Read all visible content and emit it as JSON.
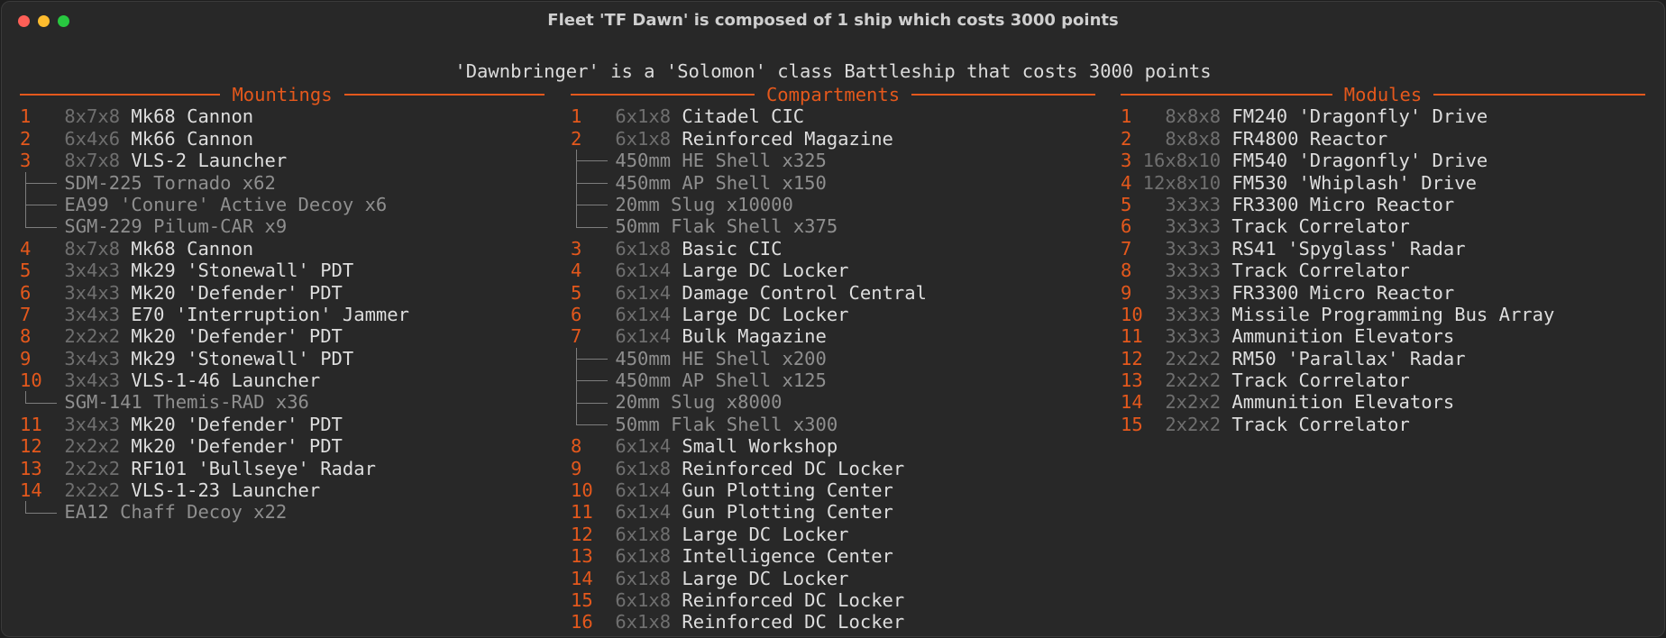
{
  "window": {
    "title": "Fleet 'TF Dawn' is composed of 1 ship which costs 3000 points"
  },
  "ship": "'Dawnbringer' is a 'Solomon' class Battleship that costs 3000 points",
  "columns": [
    {
      "title": "Mountings",
      "items": [
        {
          "index": 1,
          "size": "8x7x8",
          "name": "Mk68 Cannon"
        },
        {
          "index": 2,
          "size": "6x4x6",
          "name": "Mk66 Cannon"
        },
        {
          "index": 3,
          "size": "8x7x8",
          "name": "VLS-2 Launcher",
          "children": [
            "SDM-225 Tornado x62",
            "EA99 'Conure' Active Decoy x6",
            "SGM-229 Pilum-CAR x9"
          ]
        },
        {
          "index": 4,
          "size": "8x7x8",
          "name": "Mk68 Cannon"
        },
        {
          "index": 5,
          "size": "3x4x3",
          "name": "Mk29 'Stonewall' PDT"
        },
        {
          "index": 6,
          "size": "3x4x3",
          "name": "Mk20 'Defender' PDT"
        },
        {
          "index": 7,
          "size": "3x4x3",
          "name": "E70 'Interruption' Jammer"
        },
        {
          "index": 8,
          "size": "2x2x2",
          "name": "Mk20 'Defender' PDT"
        },
        {
          "index": 9,
          "size": "3x4x3",
          "name": "Mk29 'Stonewall' PDT"
        },
        {
          "index": 10,
          "size": "3x4x3",
          "name": "VLS-1-46 Launcher",
          "children": [
            "SGM-141 Themis-RAD x36"
          ]
        },
        {
          "index": 11,
          "size": "3x4x3",
          "name": "Mk20 'Defender' PDT"
        },
        {
          "index": 12,
          "size": "2x2x2",
          "name": "Mk20 'Defender' PDT"
        },
        {
          "index": 13,
          "size": "2x2x2",
          "name": "RF101 'Bullseye' Radar"
        },
        {
          "index": 14,
          "size": "2x2x2",
          "name": "VLS-1-23 Launcher",
          "children": [
            "EA12 Chaff Decoy x22"
          ]
        }
      ]
    },
    {
      "title": "Compartments",
      "items": [
        {
          "index": 1,
          "size": "6x1x8",
          "name": "Citadel CIC"
        },
        {
          "index": 2,
          "size": "6x1x8",
          "name": "Reinforced Magazine",
          "children": [
            "450mm HE Shell x325",
            "450mm AP Shell x150",
            "20mm Slug x10000",
            "50mm Flak Shell x375"
          ]
        },
        {
          "index": 3,
          "size": "6x1x8",
          "name": "Basic CIC"
        },
        {
          "index": 4,
          "size": "6x1x4",
          "name": "Large DC Locker"
        },
        {
          "index": 5,
          "size": "6x1x4",
          "name": "Damage Control Central"
        },
        {
          "index": 6,
          "size": "6x1x4",
          "name": "Large DC Locker"
        },
        {
          "index": 7,
          "size": "6x1x4",
          "name": "Bulk Magazine",
          "children": [
            "450mm HE Shell x200",
            "450mm AP Shell x125",
            "20mm Slug x8000",
            "50mm Flak Shell x300"
          ]
        },
        {
          "index": 8,
          "size": "6x1x4",
          "name": "Small Workshop"
        },
        {
          "index": 9,
          "size": "6x1x8",
          "name": "Reinforced DC Locker"
        },
        {
          "index": 10,
          "size": "6x1x4",
          "name": "Gun Plotting Center"
        },
        {
          "index": 11,
          "size": "6x1x4",
          "name": "Gun Plotting Center"
        },
        {
          "index": 12,
          "size": "6x1x8",
          "name": "Large DC Locker"
        },
        {
          "index": 13,
          "size": "6x1x8",
          "name": "Intelligence Center"
        },
        {
          "index": 14,
          "size": "6x1x8",
          "name": "Large DC Locker"
        },
        {
          "index": 15,
          "size": "6x1x8",
          "name": "Reinforced DC Locker"
        },
        {
          "index": 16,
          "size": "6x1x8",
          "name": "Reinforced DC Locker"
        }
      ]
    },
    {
      "title": "Modules",
      "items": [
        {
          "index": 1,
          "size": "8x8x8",
          "name": "FM240 'Dragonfly' Drive"
        },
        {
          "index": 2,
          "size": "8x8x8",
          "name": "FR4800 Reactor"
        },
        {
          "index": 3,
          "size": "16x8x10",
          "name": "FM540 'Dragonfly' Drive"
        },
        {
          "index": 4,
          "size": "12x8x10",
          "name": "FM530 'Whiplash' Drive"
        },
        {
          "index": 5,
          "size": "3x3x3",
          "name": "FR3300 Micro Reactor"
        },
        {
          "index": 6,
          "size": "3x3x3",
          "name": "Track Correlator"
        },
        {
          "index": 7,
          "size": "3x3x3",
          "name": "RS41 'Spyglass' Radar"
        },
        {
          "index": 8,
          "size": "3x3x3",
          "name": "Track Correlator"
        },
        {
          "index": 9,
          "size": "3x3x3",
          "name": "FR3300 Micro Reactor"
        },
        {
          "index": 10,
          "size": "3x3x3",
          "name": "Missile Programming Bus Array"
        },
        {
          "index": 11,
          "size": "3x3x3",
          "name": "Ammunition Elevators"
        },
        {
          "index": 12,
          "size": "2x2x2",
          "name": "RM50 'Parallax' Radar"
        },
        {
          "index": 13,
          "size": "2x2x2",
          "name": "Track Correlator"
        },
        {
          "index": 14,
          "size": "2x2x2",
          "name": "Ammunition Elevators"
        },
        {
          "index": 15,
          "size": "2x2x2",
          "name": "Track Correlator"
        }
      ]
    }
  ]
}
